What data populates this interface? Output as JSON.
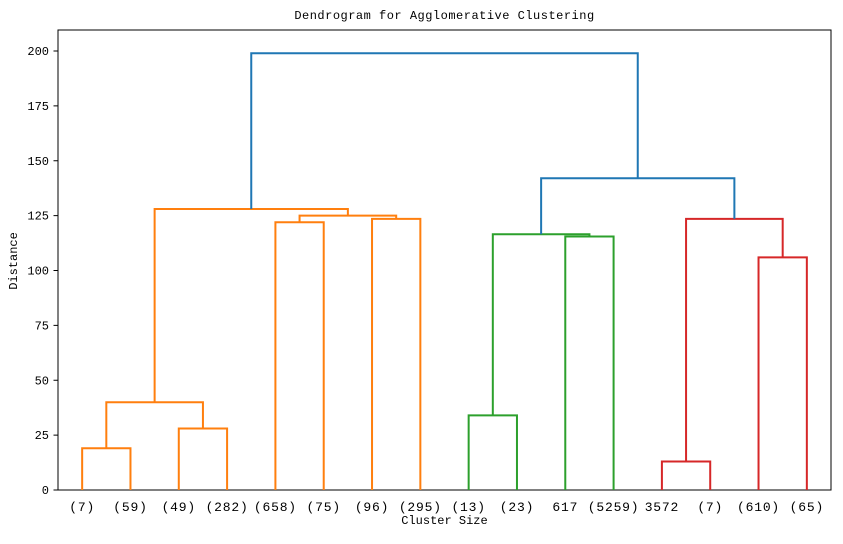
{
  "figure": {
    "title": "Dendrogram for Agglomerative Clustering",
    "xlabel": "Cluster Size",
    "ylabel": "Distance"
  },
  "chart_data": {
    "type": "dendrogram",
    "title": "Dendrogram for Agglomerative Clustering",
    "xlabel": "Cluster Size",
    "ylabel": "Distance",
    "grid": false,
    "legend": false,
    "ylim": [
      0,
      209.5
    ],
    "yticks": [
      0,
      25,
      50,
      75,
      100,
      125,
      150,
      175,
      200
    ],
    "leaf_labels": [
      "(7)",
      "(59)",
      "(49)",
      "(282)",
      "(658)",
      "(75)",
      "(96)",
      "(295)",
      "(13)",
      "(23)",
      "617",
      "(5259)",
      "3572",
      "(7)",
      "(610)",
      "(65)"
    ],
    "links": [
      {
        "id": "A",
        "left": "L0",
        "right": "L1",
        "height": 19,
        "color": "orange"
      },
      {
        "id": "B",
        "left": "L2",
        "right": "L3",
        "height": 28,
        "color": "orange"
      },
      {
        "id": "C",
        "left": "A",
        "right": "B",
        "height": 40,
        "color": "orange"
      },
      {
        "id": "D",
        "left": "L4",
        "right": "L5",
        "height": 122,
        "color": "orange"
      },
      {
        "id": "E",
        "left": "L6",
        "right": "L7",
        "height": 123.5,
        "color": "orange"
      },
      {
        "id": "F",
        "left": "D",
        "right": "E",
        "height": 125,
        "color": "orange"
      },
      {
        "id": "G",
        "left": "C",
        "right": "F",
        "height": 128,
        "color": "orange"
      },
      {
        "id": "H",
        "left": "L8",
        "right": "L9",
        "height": 34,
        "color": "green"
      },
      {
        "id": "I",
        "left": "L10",
        "right": "L11",
        "height": 115.5,
        "color": "green"
      },
      {
        "id": "J",
        "left": "H",
        "right": "I",
        "height": 116.5,
        "color": "green"
      },
      {
        "id": "K",
        "left": "L12",
        "right": "L13",
        "height": 13,
        "color": "red"
      },
      {
        "id": "L",
        "left": "L14",
        "right": "L15",
        "height": 106,
        "color": "red"
      },
      {
        "id": "M",
        "left": "K",
        "right": "L",
        "height": 123.5,
        "color": "red"
      },
      {
        "id": "N",
        "left": "J",
        "right": "M",
        "height": 142,
        "color": "blue"
      },
      {
        "id": "O",
        "left": "G",
        "right": "N",
        "height": 199,
        "color": "blue"
      }
    ],
    "colors": {
      "blue": "#1f77b4",
      "orange": "#ff7f0e",
      "green": "#2ca02c",
      "red": "#d62728"
    },
    "axis_color": "#000000"
  }
}
